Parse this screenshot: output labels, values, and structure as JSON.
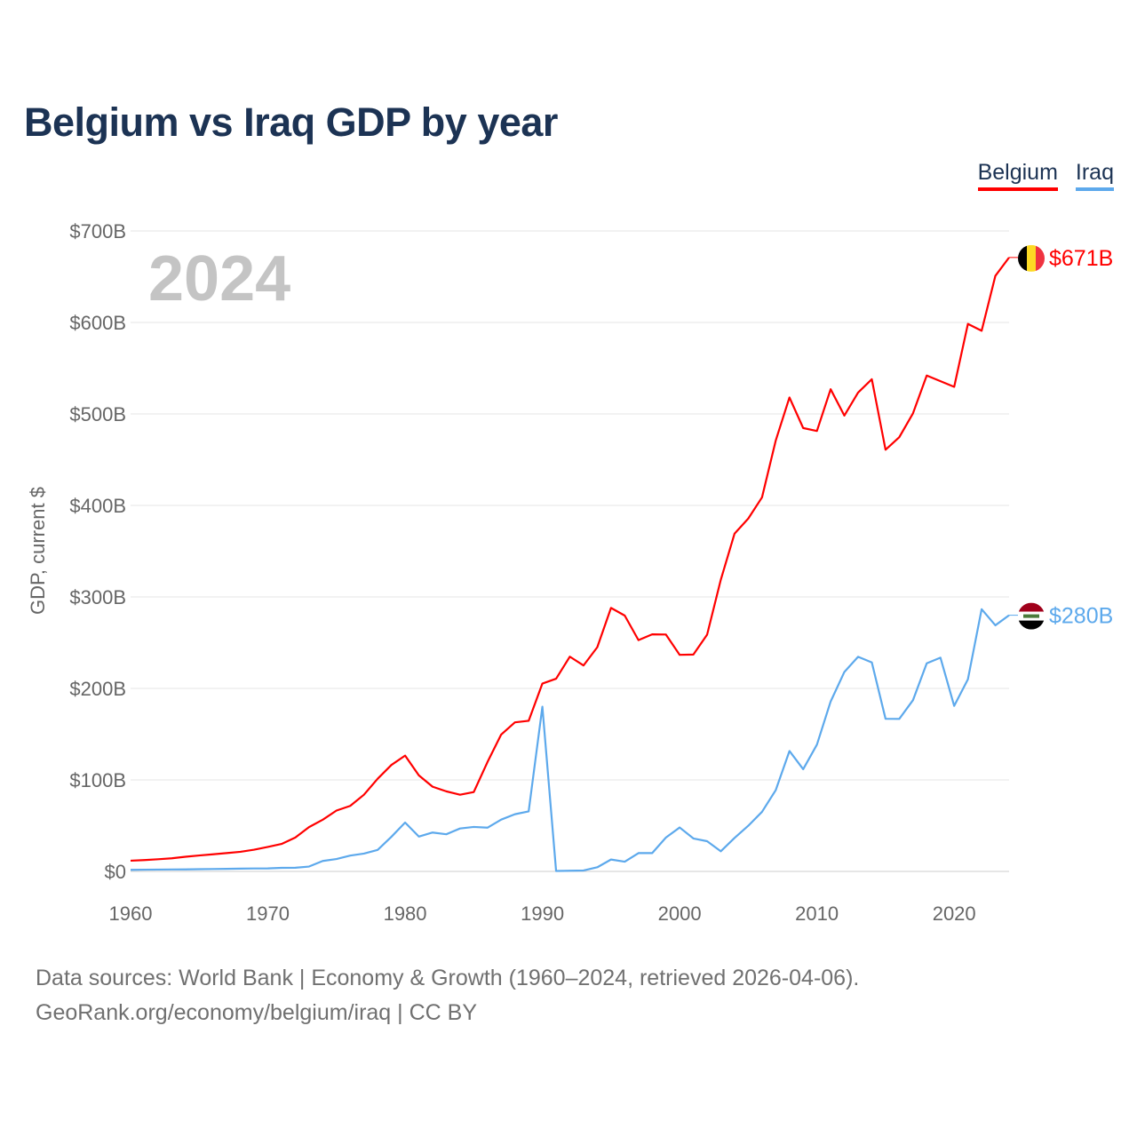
{
  "title": "Belgium vs Iraq GDP by year",
  "footer": {
    "line1": "Data sources: World Bank | Economy & Growth (1960–2024, retrieved 2026-04-06).",
    "line2": "GeoRank.org/economy/belgium/iraq | CC BY"
  },
  "chart_data": {
    "type": "line",
    "title": "Belgium vs Iraq GDP by year",
    "xlabel": "",
    "ylabel": "GDP, current $",
    "year_label": "2024",
    "xlim": [
      1960,
      2024
    ],
    "ylim": [
      0,
      700
    ],
    "x_ticks": [
      "1960",
      "1970",
      "1980",
      "1990",
      "2000",
      "2010",
      "2020"
    ],
    "y_ticks": [
      "$0",
      "$100B",
      "$200B",
      "$300B",
      "$400B",
      "$500B",
      "$600B",
      "$700B"
    ],
    "grid": true,
    "legend_position": "top-right",
    "x": [
      1960,
      1961,
      1962,
      1963,
      1964,
      1965,
      1966,
      1967,
      1968,
      1969,
      1970,
      1971,
      1972,
      1973,
      1974,
      1975,
      1976,
      1977,
      1978,
      1979,
      1980,
      1981,
      1982,
      1983,
      1984,
      1985,
      1986,
      1987,
      1988,
      1989,
      1990,
      1991,
      1992,
      1993,
      1994,
      1995,
      1996,
      1997,
      1998,
      1999,
      2000,
      2001,
      2002,
      2003,
      2004,
      2005,
      2006,
      2007,
      2008,
      2009,
      2010,
      2011,
      2012,
      2013,
      2014,
      2015,
      2016,
      2017,
      2018,
      2019,
      2020,
      2021,
      2022,
      2023,
      2024
    ],
    "series": [
      {
        "name": "Belgium",
        "color": "#ff0000",
        "end_label": "$671B",
        "values": [
          11.7,
          12.4,
          13.3,
          14.3,
          16.0,
          17.4,
          18.7,
          20.0,
          21.4,
          23.7,
          26.8,
          30.0,
          37.0,
          48.4,
          56.5,
          66.5,
          71.6,
          83.8,
          101.3,
          116.3,
          126.6,
          105.0,
          92.6,
          87.5,
          83.8,
          86.7,
          119.5,
          149.6,
          162.9,
          164.6,
          205.3,
          210.6,
          234.7,
          225.1,
          245.0,
          288.0,
          279.6,
          252.8,
          259.1,
          258.9,
          236.7,
          237.0,
          258.7,
          318.9,
          369.2,
          385.7,
          408.8,
          470.9,
          518.0,
          484.6,
          481.4,
          527.0,
          498.2,
          523.4,
          537.9,
          460.9,
          474.6,
          500.7,
          542.0,
          535.8,
          529.6,
          598.4,
          590.9,
          650.9,
          671.0
        ]
      },
      {
        "name": "Iraq",
        "color": "#5da9ec",
        "end_label": "$280B",
        "values": [
          1.7,
          1.9,
          2.0,
          2.1,
          2.2,
          2.4,
          2.6,
          2.8,
          3.0,
          3.2,
          3.3,
          3.9,
          4.0,
          5.3,
          11.4,
          13.5,
          17.3,
          19.5,
          23.5,
          37.8,
          53.4,
          38.1,
          42.5,
          40.6,
          46.9,
          48.6,
          47.8,
          56.6,
          62.5,
          65.6,
          180.0,
          0.5,
          0.7,
          1.0,
          4.5,
          13.0,
          10.6,
          20.0,
          20.0,
          37.0,
          48.0,
          36.0,
          33.0,
          22.0,
          36.6,
          49.9,
          65.1,
          88.8,
          131.6,
          111.7,
          138.5,
          185.7,
          218.0,
          234.6,
          228.4,
          166.8,
          166.7,
          187.2,
          227.4,
          233.6,
          180.9,
          210.0,
          286.6,
          269.0,
          280.0
        ]
      }
    ]
  }
}
